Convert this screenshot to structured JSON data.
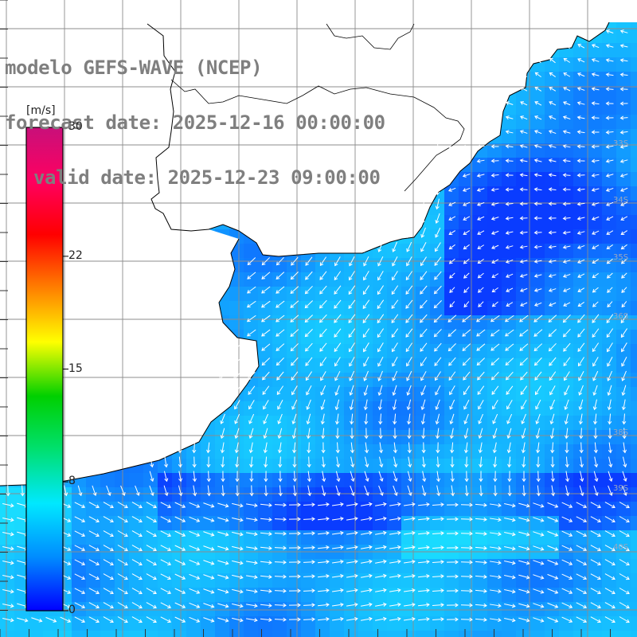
{
  "title": {
    "model": "modelo GEFS-WAVE (NCEP)",
    "forecast": "forecast date: 2025-12-16 00:00:00",
    "valid": "valid date: 2025-12-23 09:00:00"
  },
  "colorbar": {
    "units": "[m/s]",
    "ticks": [
      {
        "label": "30",
        "value": 30
      },
      {
        "label": "22",
        "value": 22
      },
      {
        "label": "15",
        "value": 15
      },
      {
        "label": "8",
        "value": 8
      },
      {
        "label": "0",
        "value": 0
      }
    ],
    "range": [
      0,
      30
    ],
    "colors": [
      "#0000ff",
      "#008cff",
      "#00e8ff",
      "#00e070",
      "#00d000",
      "#ffff00",
      "#ff8000",
      "#ff0000",
      "#ff0060",
      "#c8107a"
    ]
  },
  "map": {
    "lat_labels": [
      "33S",
      "34S",
      "35S",
      "36S",
      "38S",
      "39S",
      "40S"
    ],
    "field": "wind speed and direction",
    "ocean_color_low": "#0a3cff",
    "ocean_color_mid": "#13a8ff",
    "ocean_color_high": "#19dcff",
    "land_color": "#ffffff",
    "grid_color": "#8c8c8c",
    "arrow_color": "#ffffff"
  }
}
